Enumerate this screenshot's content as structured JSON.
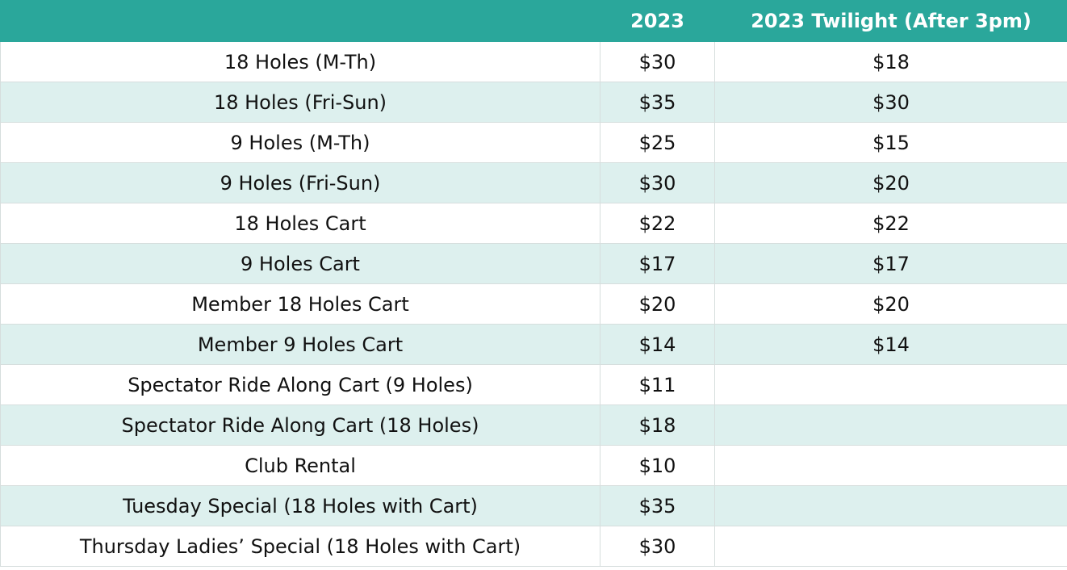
{
  "table": {
    "header": [
      "2023",
      "2023 Twilight (After 3pm)"
    ],
    "rows": [
      [
        "18 Holes (M-Th)",
        "$30",
        "$18"
      ],
      [
        "18 Holes (Fri-Sun)",
        "$35",
        "$30"
      ],
      [
        "9 Holes (M-Th)",
        "$25",
        "$15"
      ],
      [
        "9 Holes (Fri-Sun)",
        "$30",
        "$20"
      ],
      [
        "18 Holes Cart",
        "$22",
        "$22"
      ],
      [
        "9 Holes Cart",
        "$17",
        "$17"
      ],
      [
        "Member 18 Holes Cart",
        "$20",
        "$20"
      ],
      [
        "Member 9 Holes Cart",
        "$14",
        "$14"
      ],
      [
        "Spectator Ride Along Cart (9 Holes)",
        "$11",
        null
      ],
      [
        "Spectator Ride Along Cart (18 Holes)",
        "$18",
        null
      ],
      [
        "Club Rental",
        "$10",
        null
      ],
      [
        "Tuesday Special (18 Holes with Cart)",
        "$35",
        null
      ],
      [
        "Thursday Ladies’ Special (18 Holes with Cart)",
        "$30",
        null
      ]
    ]
  }
}
